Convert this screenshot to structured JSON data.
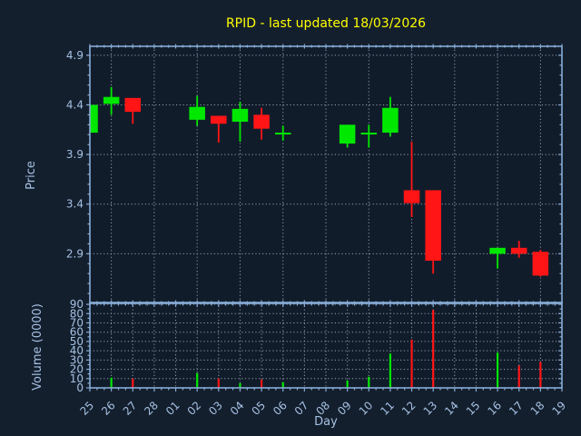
{
  "title": "RPID - last updated 18/03/2026",
  "colors": {
    "background": "#141F2E",
    "plot_background": "#111C2B",
    "up": "#00E800",
    "down": "#FF1515",
    "axis": "#87ACD6",
    "tick_label": "#A5C1E2",
    "grid": "#A9B3C0",
    "title": "#FFFF00"
  },
  "chart_data": [
    {
      "type": "candlestick",
      "title": "RPID - last updated 18/03/2026",
      "xlabel": "Day",
      "ylabel": "Price",
      "categories": [
        "25",
        "26",
        "27",
        "28",
        "01",
        "02",
        "03",
        "04",
        "05",
        "06",
        "07",
        "08",
        "09",
        "10",
        "11",
        "12",
        "13",
        "14",
        "15",
        "16",
        "17",
        "18",
        "19"
      ],
      "y_ticks": [
        "2.9",
        "3.4",
        "3.9",
        "4.4",
        "4.9"
      ],
      "ylim": [
        2.4,
        4.99
      ],
      "grid": "dotted, vertical every 2 days",
      "legend": "none",
      "series": [
        {
          "name": "OHLC",
          "points": [
            {
              "day": "25",
              "open": 4.12,
              "high": 4.4,
              "low": 4.12,
              "close": 4.4,
              "dir": "up"
            },
            {
              "day": "26",
              "open": 4.41,
              "high": 4.58,
              "low": 4.3,
              "close": 4.48,
              "dir": "up"
            },
            {
              "day": "27",
              "open": 4.47,
              "high": 4.47,
              "low": 4.21,
              "close": 4.33,
              "dir": "down"
            },
            {
              "day": "02",
              "open": 4.25,
              "high": 4.49,
              "low": 4.19,
              "close": 4.38,
              "dir": "up"
            },
            {
              "day": "03",
              "open": 4.29,
              "high": 4.29,
              "low": 4.02,
              "close": 4.21,
              "dir": "down"
            },
            {
              "day": "04",
              "open": 4.23,
              "high": 4.43,
              "low": 4.03,
              "close": 4.36,
              "dir": "up"
            },
            {
              "day": "05",
              "open": 4.3,
              "high": 4.37,
              "low": 4.05,
              "close": 4.16,
              "dir": "down"
            },
            {
              "day": "06",
              "open": 4.12,
              "high": 4.19,
              "low": 4.04,
              "close": 4.12,
              "dir": "up"
            },
            {
              "day": "09",
              "open": 4.01,
              "high": 4.2,
              "low": 3.97,
              "close": 4.2,
              "dir": "up"
            },
            {
              "day": "10",
              "open": 4.12,
              "high": 4.2,
              "low": 3.97,
              "close": 4.12,
              "dir": "up"
            },
            {
              "day": "11",
              "open": 4.12,
              "high": 4.48,
              "low": 4.08,
              "close": 4.37,
              "dir": "up"
            },
            {
              "day": "12",
              "open": 3.54,
              "high": 4.03,
              "low": 3.27,
              "close": 3.41,
              "dir": "down"
            },
            {
              "day": "13",
              "open": 3.54,
              "high": 3.54,
              "low": 2.7,
              "close": 2.83,
              "dir": "down"
            },
            {
              "day": "16",
              "open": 2.9,
              "high": 2.96,
              "low": 2.75,
              "close": 2.96,
              "dir": "up"
            },
            {
              "day": "17",
              "open": 2.96,
              "high": 3.03,
              "low": 2.86,
              "close": 2.9,
              "dir": "down"
            },
            {
              "day": "18",
              "open": 2.92,
              "high": 2.94,
              "low": 2.67,
              "close": 2.68,
              "dir": "down"
            }
          ]
        }
      ]
    },
    {
      "type": "bar",
      "xlabel": "Day",
      "ylabel": "Volume (0000)",
      "categories": [
        "25",
        "26",
        "27",
        "28",
        "01",
        "02",
        "03",
        "04",
        "05",
        "06",
        "07",
        "08",
        "09",
        "10",
        "11",
        "12",
        "13",
        "14",
        "15",
        "16",
        "17",
        "18",
        "19"
      ],
      "y_ticks": [
        "0",
        "10",
        "20",
        "30",
        "40",
        "50",
        "60",
        "70",
        "80",
        "90"
      ],
      "ylim": [
        0,
        92
      ],
      "grid": "dotted, vertical every day",
      "values": [
        {
          "day": "26",
          "value": 11,
          "dir": "up"
        },
        {
          "day": "27",
          "value": 10,
          "dir": "down"
        },
        {
          "day": "02",
          "value": 16,
          "dir": "up"
        },
        {
          "day": "03",
          "value": 10,
          "dir": "down"
        },
        {
          "day": "04",
          "value": 5,
          "dir": "up"
        },
        {
          "day": "05",
          "value": 9,
          "dir": "down"
        },
        {
          "day": "06",
          "value": 6,
          "dir": "up"
        },
        {
          "day": "09",
          "value": 8,
          "dir": "up"
        },
        {
          "day": "10",
          "value": 12,
          "dir": "up"
        },
        {
          "day": "11",
          "value": 37,
          "dir": "up"
        },
        {
          "day": "12",
          "value": 52,
          "dir": "down"
        },
        {
          "day": "13",
          "value": 84,
          "dir": "down"
        },
        {
          "day": "16",
          "value": 38,
          "dir": "up"
        },
        {
          "day": "17",
          "value": 24,
          "dir": "down"
        },
        {
          "day": "18",
          "value": 28,
          "dir": "down"
        }
      ]
    }
  ]
}
